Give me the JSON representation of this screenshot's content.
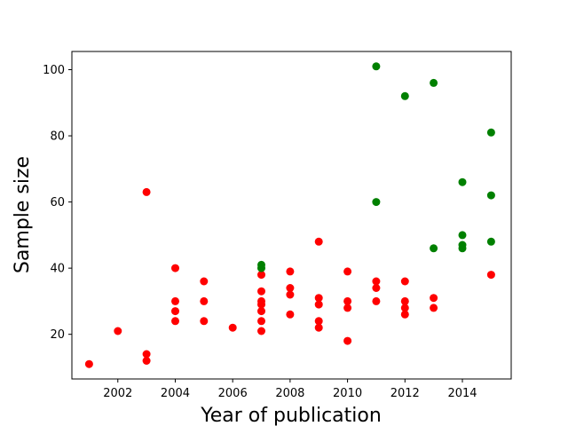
{
  "chart_data": {
    "type": "scatter",
    "title": "",
    "xlabel": "Year of publication",
    "ylabel": "Sample size",
    "xlim": [
      2000.4,
      2015.7
    ],
    "ylim": [
      6.5,
      105.5
    ],
    "xticks": [
      2002,
      2004,
      2006,
      2008,
      2010,
      2012,
      2014
    ],
    "yticks": [
      20,
      40,
      60,
      80,
      100
    ],
    "grid": false,
    "legend": "none",
    "series": [
      {
        "color": "#ff0000",
        "points": [
          [
            2001,
            11
          ],
          [
            2002,
            21
          ],
          [
            2003,
            63
          ],
          [
            2003,
            14
          ],
          [
            2003,
            12
          ],
          [
            2004,
            40
          ],
          [
            2004,
            30
          ],
          [
            2004,
            27
          ],
          [
            2004,
            24
          ],
          [
            2005,
            36
          ],
          [
            2005,
            30
          ],
          [
            2005,
            24
          ],
          [
            2006,
            22
          ],
          [
            2007,
            38
          ],
          [
            2007,
            33
          ],
          [
            2007,
            30
          ],
          [
            2007,
            29
          ],
          [
            2007,
            27
          ],
          [
            2007,
            24
          ],
          [
            2007,
            21
          ],
          [
            2008,
            39
          ],
          [
            2008,
            34
          ],
          [
            2008,
            32
          ],
          [
            2008,
            26
          ],
          [
            2009,
            48
          ],
          [
            2009,
            31
          ],
          [
            2009,
            29
          ],
          [
            2009,
            24
          ],
          [
            2009,
            22
          ],
          [
            2010,
            39
          ],
          [
            2010,
            30
          ],
          [
            2010,
            28
          ],
          [
            2010,
            18
          ],
          [
            2011,
            36
          ],
          [
            2011,
            34
          ],
          [
            2011,
            30
          ],
          [
            2012,
            36
          ],
          [
            2012,
            30
          ],
          [
            2012,
            28
          ],
          [
            2012,
            26
          ],
          [
            2013,
            31
          ],
          [
            2013,
            28
          ],
          [
            2015,
            38
          ]
        ]
      },
      {
        "color": "#008000",
        "points": [
          [
            2007,
            41
          ],
          [
            2007,
            40
          ],
          [
            2011,
            101
          ],
          [
            2011,
            60
          ],
          [
            2012,
            92
          ],
          [
            2013,
            96
          ],
          [
            2013,
            46
          ],
          [
            2014,
            66
          ],
          [
            2014,
            50
          ],
          [
            2014,
            47
          ],
          [
            2014,
            46
          ],
          [
            2015,
            81
          ],
          [
            2015,
            62
          ],
          [
            2015,
            48
          ]
        ]
      }
    ]
  }
}
